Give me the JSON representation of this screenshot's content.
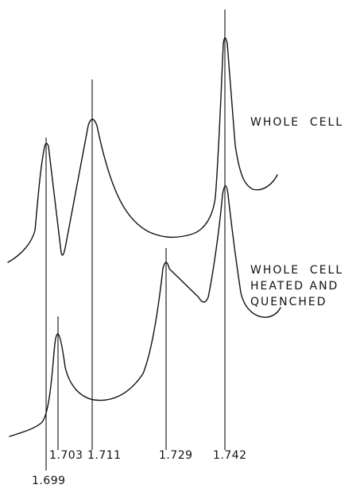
{
  "chart_data": {
    "type": "line",
    "xlabel": "",
    "ylabel": "",
    "x_ticks": [
      "1.699",
      "1.703",
      "1.711",
      "1.729",
      "1.742"
    ],
    "series": [
      {
        "name": "WHOLE CELL",
        "label_lines": [
          "WHOLE  CELL"
        ],
        "peaks": [
          {
            "x": 1.699,
            "rel_height": 0.56
          },
          {
            "x": 1.711,
            "rel_height": 0.74
          },
          {
            "x": 1.742,
            "rel_height": 1.0
          }
        ]
      },
      {
        "name": "WHOLE CELL HEATED AND QUENCHED",
        "label_lines": [
          "WHOLE  CELL",
          "HEATED AND",
          "QUENCHED"
        ],
        "peaks": [
          {
            "x": 1.703,
            "rel_height": 0.62
          },
          {
            "x": 1.729,
            "rel_height": 0.82
          },
          {
            "x": 1.742,
            "rel_height": 1.0
          }
        ]
      }
    ]
  }
}
